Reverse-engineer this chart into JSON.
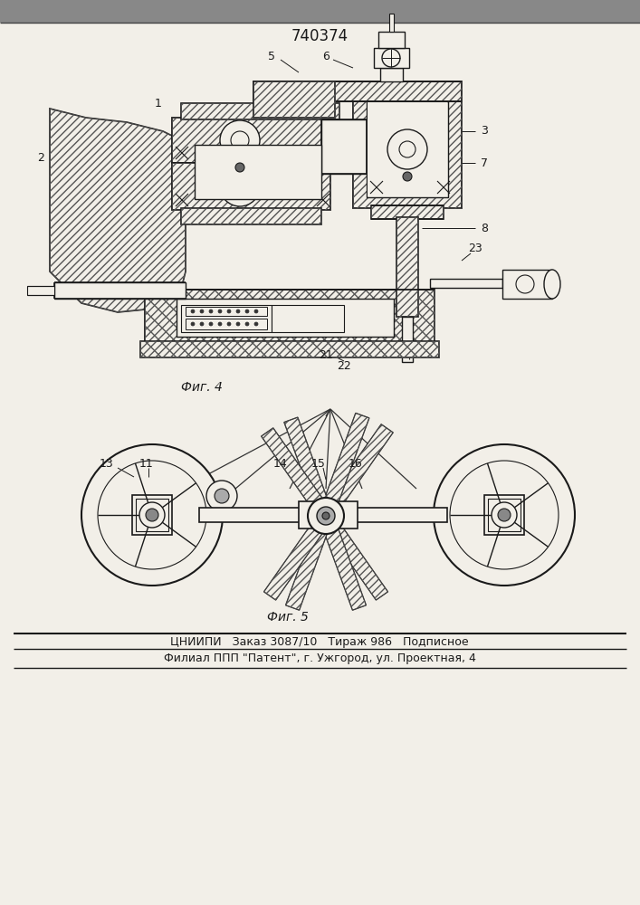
{
  "title": "740374",
  "fig4_label": "Фиг. 4",
  "fig5_label": "Фиг. 5",
  "bottom_line1": "ЦНИИПИ   Заказ 3087/10   Тираж 986   Подписное",
  "bottom_line2": "Филиал ППП \"Патент\", г. Ужгород, ул. Проектная, 4",
  "bg_color": "#f2efe8",
  "line_color": "#1a1a1a"
}
